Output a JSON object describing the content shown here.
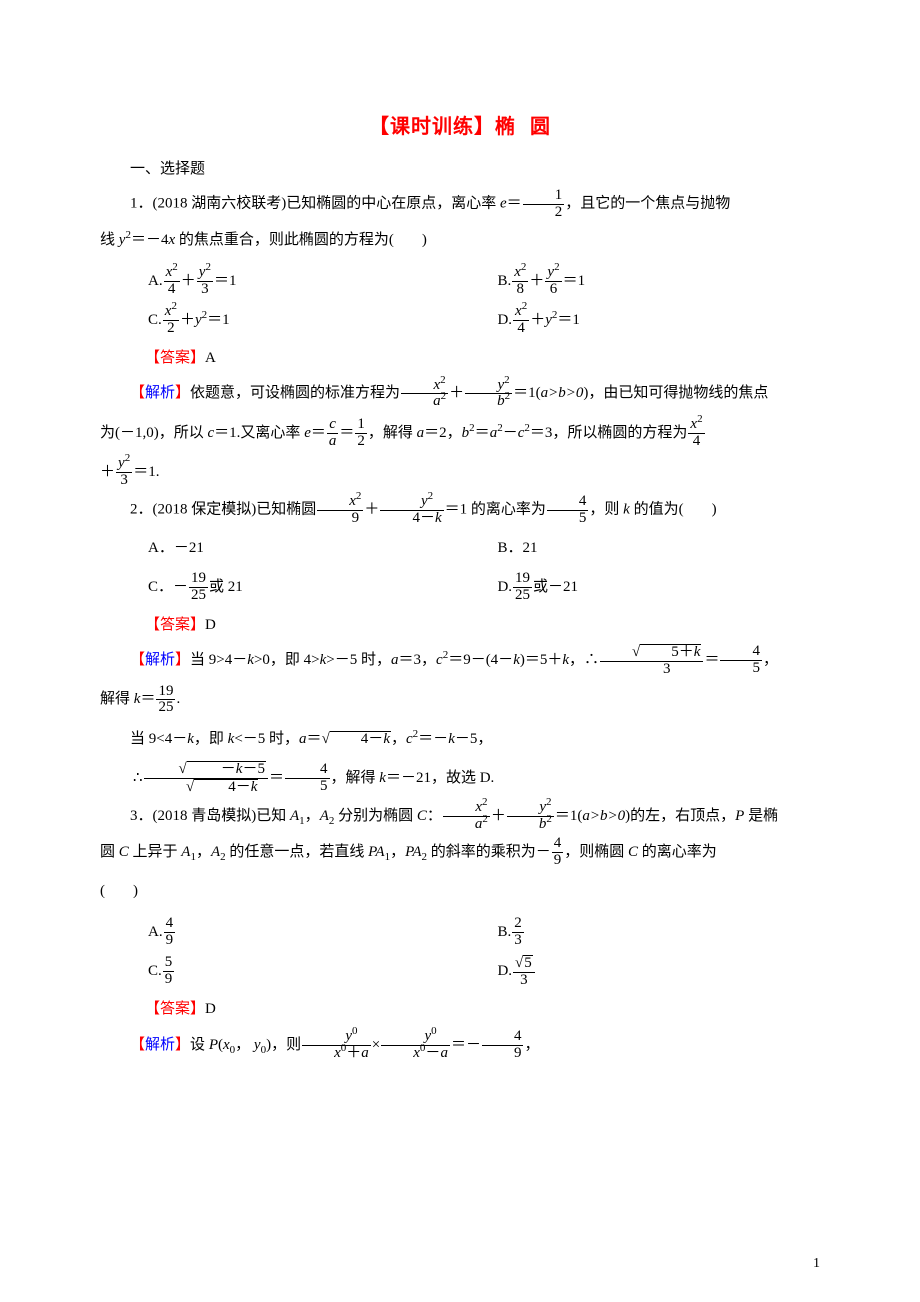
{
  "title_part1": "【课时训练】椭",
  "title_part2": "圆",
  "section1": "一、选择题",
  "q1_pre": "1．(2018 湖南六校联考)已知椭圆的中心在原点，离心率 ",
  "q1_post": "，且它的一个焦点与抛物",
  "q1_line2_pre": "线 ",
  "q1_y2": "y",
  "q1_eqtext": "＝－4",
  "q1_x": "x",
  "q1_line2_post": " 的焦点重合，则此椭圆的方程为(",
  "q1_line2_close": ")",
  "q1_e": "e",
  "eqsym": "＝",
  "q1A": "A.",
  "q1B": "B.",
  "q1C": "C.",
  "q1D": "D.",
  "frx2": "x",
  "fry2": "y",
  "sup2": "2",
  "d4": "4",
  "d3": "3",
  "d8": "8",
  "d6": "6",
  "d2": "2",
  "d1": "1",
  "plus": "＋",
  "eq1": "＝1",
  "y21": "＝1",
  "ansA": "A",
  "ansD": "D",
  "ans_label": "【答案】",
  "expl_label": "【解析】",
  "e1_text0": "依题意，可设椭圆的标准方程为",
  "e1_text1": "＝1(",
  "e1_ab": "a>b>0",
  "e1_text1b": ")，由已知可得抛物线的焦点",
  "e1_text2_pre": "为(－1,0)，所以 ",
  "e1_c": "c",
  "e1_text2_mid": "＝1.又离心率 ",
  "e1_text2_eq": "＝",
  "e1_text2_post": "，解得 ",
  "e1_a": "a",
  "e1_text2_a2": "＝2，",
  "e1_b2eq": "＝",
  "e1_minus": "－",
  "e1_text2_b2": "＝3，所以椭圆的方程为",
  "e1_text3": "＝1.",
  "da2": "a",
  "db2": "b",
  "q2_pre": "2．(2018 保定模拟)已知椭圆",
  "d9": "9",
  "q2_4mk_pre": "4－",
  "q2_k": "k",
  "q2_mid": "＝1 的离心率为",
  "d5": "5",
  "q2_post": "，则 ",
  "q2_post2": " 的值为(",
  "q2_close": ")",
  "q2A": "A．－21",
  "q2B": "B．21",
  "q2C_pre": "C．－",
  "d19": "19",
  "d25": "25",
  "q2C_post": "或 21",
  "q2D_pre": "D.",
  "q2D_post": "或－21",
  "e2_text0": "当 9>4－",
  "e2_text0b": ">0，即 4>",
  "e2_text0c": ">－5 时，",
  "e2_text0d": "＝3，",
  "e2_c2": "＝9－(4－",
  "e2_text0e": ")＝5＋",
  "e2_text0f": "，∴",
  "e2_sq5k_pre": "5＋",
  "e2_text1_pre": "解得 ",
  "e2_text1_post": ".",
  "e2_k": "k",
  "e2_keq": "＝",
  "e2_text2_pre": "当 9<4－",
  "e2_text2_mid": "，即 ",
  "e2_text2_mid2": "<－5 时，",
  "e2_text2_a": "＝",
  "e2_sq4mk_pre": "4－",
  "e2_text2_c2": "＝－",
  "e2_text2_m5": "－5，",
  "e2_text3_pre": "∴",
  "e2_sqnk5_pre": "－",
  "e2_sqnk5_post": "－5",
  "e2_text3_post": "，解得 ",
  "e2_text3_k": "＝－21，故选 D.",
  "q3_pre": "3．(2018 青岛模拟)已知 ",
  "q3_A1": "A",
  "q3_sub1": "1",
  "q3_comma": "，",
  "q3_sub2": "2",
  "q3_mid0": " 分别为椭圆 ",
  "q3_C": "C",
  "q3_colon": "：",
  "q3_mid1": "＝1(",
  "q3_mid1b": ")的左，右顶点，",
  "q3_P": "P",
  "q3_mid2": " 是椭",
  "q3_line2_pre": "圆 ",
  "q3_line2_mid": " 上异于 ",
  "q3_line2_mid2": " 的任意一点，若直线 ",
  "q3_PA": "PA",
  "q3_line2_mid3": " 的斜率的乘积为－",
  "q3_line2_post": "，则椭圆 ",
  "q3_line2_post2": " 的离心率为",
  "q3_paren": "(",
  "q3_close": ")",
  "q3Ap": "A.",
  "q3Bp": "B.",
  "q3Cp": "C.",
  "q3Dp": "D.",
  "dsq5": "5",
  "e3_text0": "设 ",
  "e3_Ppar": "(",
  "e3_x0": "x",
  "e3_y0": "y",
  "e3_sub0": "0",
  "e3_text0b": ")，则",
  "e3_times": "×",
  "e3_eqneg": "＝－",
  "e3_text_end": "，",
  "e3_xpa": "＋",
  "e3_xma": "－",
  "pagenum": "1"
}
